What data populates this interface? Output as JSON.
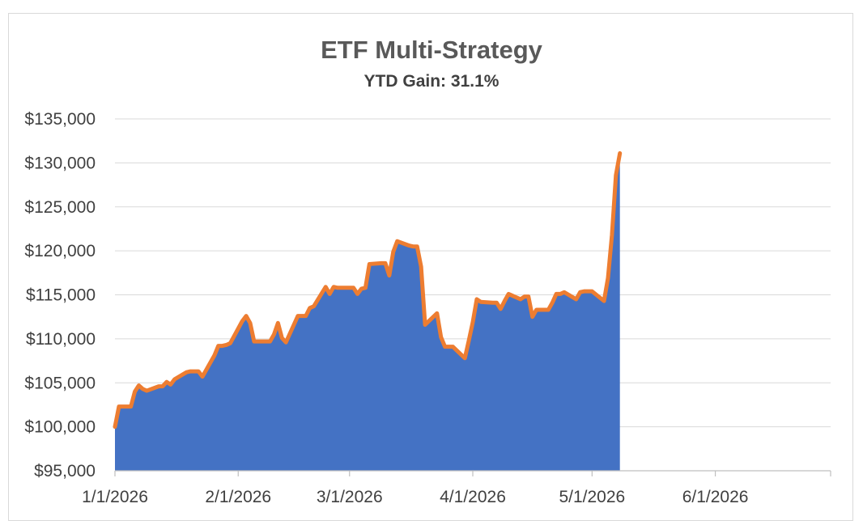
{
  "chart_data": {
    "type": "area",
    "title": "ETF Multi-Strategy",
    "subtitle": "YTD Gain: 31.1%",
    "xlabel": "",
    "ylabel": "",
    "ylim": [
      95000,
      135000
    ],
    "xlim": [
      "2026-01-01",
      "2026-06-30"
    ],
    "y_ticks": [
      95000,
      100000,
      105000,
      110000,
      115000,
      120000,
      125000,
      130000,
      135000
    ],
    "y_tick_labels": [
      "$95,000",
      "$100,000",
      "$105,000",
      "$110,000",
      "$115,000",
      "$120,000",
      "$125,000",
      "$130,000",
      "$135,000"
    ],
    "x_ticks": [
      "2026-01-01",
      "2026-02-01",
      "2026-03-01",
      "2026-04-01",
      "2026-05-01",
      "2026-06-01"
    ],
    "x_tick_labels": [
      "1/1/2026",
      "2/1/2026",
      "3/1/2026",
      "4/1/2026",
      "5/1/2026",
      "6/1/2026"
    ],
    "grid": true,
    "legend": "none",
    "colors": {
      "fill": "#4472c4",
      "line": "#ed7d31",
      "grid": "#d9d9d9",
      "axis": "#bfbfbf"
    },
    "x": [
      "2026-01-01",
      "2026-01-02",
      "2026-01-05",
      "2026-01-06",
      "2026-01-07",
      "2026-01-08",
      "2026-01-09",
      "2026-01-12",
      "2026-01-13",
      "2026-01-14",
      "2026-01-15",
      "2026-01-16",
      "2026-01-19",
      "2026-01-20",
      "2026-01-21",
      "2026-01-22",
      "2026-01-23",
      "2026-01-26",
      "2026-01-27",
      "2026-01-28",
      "2026-01-29",
      "2026-01-30",
      "2026-02-02",
      "2026-02-03",
      "2026-02-04",
      "2026-02-05",
      "2026-02-06",
      "2026-02-09",
      "2026-02-10",
      "2026-02-11",
      "2026-02-12",
      "2026-02-13",
      "2026-02-16",
      "2026-02-17",
      "2026-02-18",
      "2026-02-19",
      "2026-02-20",
      "2026-02-23",
      "2026-02-24",
      "2026-02-25",
      "2026-02-26",
      "2026-02-27",
      "2026-03-02",
      "2026-03-03",
      "2026-03-04",
      "2026-03-05",
      "2026-03-06",
      "2026-03-09",
      "2026-03-10",
      "2026-03-11",
      "2026-03-12",
      "2026-03-13",
      "2026-03-16",
      "2026-03-17",
      "2026-03-18",
      "2026-03-19",
      "2026-03-20",
      "2026-03-23",
      "2026-03-24",
      "2026-03-25",
      "2026-03-26",
      "2026-03-27",
      "2026-03-30",
      "2026-03-31",
      "2026-04-01",
      "2026-04-02",
      "2026-04-03",
      "2026-04-06",
      "2026-04-07",
      "2026-04-08",
      "2026-04-09",
      "2026-04-10",
      "2026-04-13",
      "2026-04-14",
      "2026-04-15",
      "2026-04-16",
      "2026-04-17",
      "2026-04-20",
      "2026-04-21",
      "2026-04-22",
      "2026-04-23",
      "2026-04-24",
      "2026-04-27",
      "2026-04-28",
      "2026-04-29",
      "2026-04-30",
      "2026-05-01",
      "2026-05-04",
      "2026-05-05",
      "2026-05-06",
      "2026-05-07",
      "2026-05-08"
    ],
    "values": [
      100000,
      102300,
      102300,
      104000,
      104700,
      104300,
      104100,
      104600,
      104600,
      105100,
      104800,
      105400,
      106200,
      106300,
      106300,
      106300,
      105700,
      108100,
      109200,
      109200,
      109300,
      109500,
      112000,
      112600,
      111800,
      109700,
      109700,
      109700,
      110500,
      111800,
      110100,
      109600,
      112600,
      112600,
      112600,
      113500,
      113700,
      115900,
      115100,
      115900,
      115800,
      115800,
      115800,
      115100,
      115700,
      115800,
      118500,
      118600,
      118600,
      117200,
      119900,
      121100,
      120600,
      120500,
      120500,
      118200,
      111600,
      112900,
      110200,
      109100,
      109100,
      109100,
      107800,
      109800,
      111900,
      114500,
      114200,
      114100,
      114100,
      113400,
      114300,
      115100,
      114500,
      114800,
      114800,
      112500,
      113300,
      113300,
      114100,
      115100,
      115100,
      115300,
      114500,
      115300,
      115400,
      115400,
      115400,
      114300,
      116900,
      121800,
      128600,
      131100
    ]
  }
}
